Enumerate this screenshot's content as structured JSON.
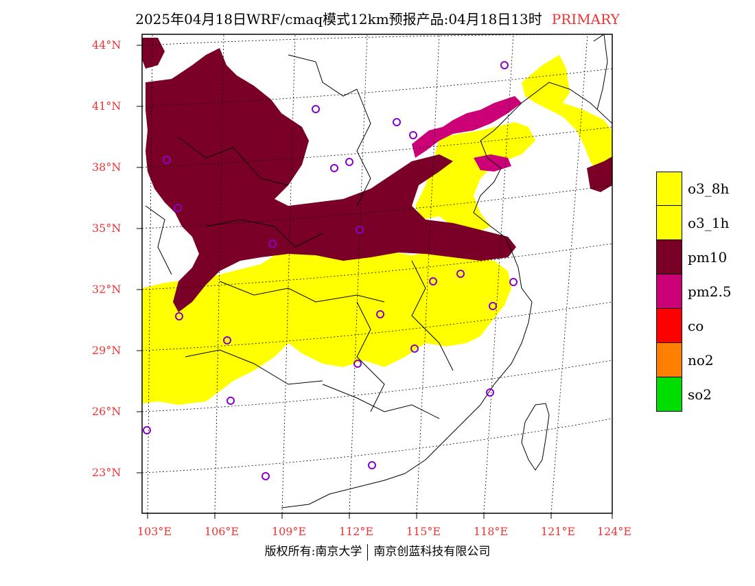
{
  "header": {
    "title": "2025年04月18日WRF/cmaq模式12km预报产品:04月18日13时",
    "tag": "PRIMARY",
    "tag_color": "#ee3333"
  },
  "axes": {
    "lat_labels": [
      "44°N",
      "41°N",
      "38°N",
      "35°N",
      "32°N",
      "29°N",
      "26°N",
      "23°N"
    ],
    "lon_labels": [
      "103°E",
      "106°E",
      "109°E",
      "112°E",
      "115°E",
      "118°E",
      "121°E",
      "124°E"
    ],
    "label_color": "#ee3333"
  },
  "legend": [
    {
      "label": "o3_8h",
      "color": "#ffff00"
    },
    {
      "label": "o3_1h",
      "color": "#ffff00"
    },
    {
      "label": "pm10",
      "color": "#7b0028"
    },
    {
      "label": "pm2.5",
      "color": "#cc0077"
    },
    {
      "label": "co",
      "color": "#ff0000"
    },
    {
      "label": "no2",
      "color": "#ff8000"
    },
    {
      "label": "so2",
      "color": "#00dd00"
    }
  ],
  "stations_color": "#8800cc",
  "footer": {
    "left": "版权所有:南京大学",
    "right": "南京创蓝科技有限公司"
  }
}
